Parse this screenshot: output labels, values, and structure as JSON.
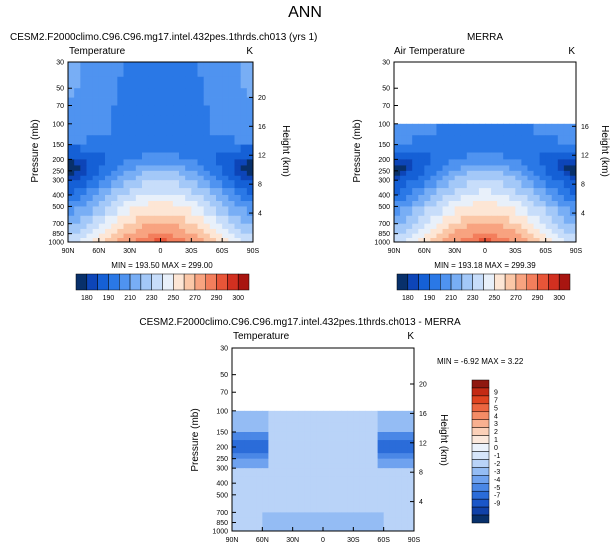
{
  "figure_title": "ANN",
  "colors": {
    "abs_cmap": [
      "#08306b",
      "#0d45b8",
      "#1560d6",
      "#2a78e6",
      "#4f93f0",
      "#78aef5",
      "#a3c8f8",
      "#c7ddfa",
      "#e8f0fa",
      "#fde6d5",
      "#fbc7a7",
      "#f8a380",
      "#f37e5c",
      "#e85538",
      "#d23020",
      "#a81510"
    ],
    "diff_cmap": [
      "#08306b",
      "#1041a8",
      "#1a56c8",
      "#2b6cd9",
      "#4a87e6",
      "#6fa2ef",
      "#94bcf4",
      "#b9d3f8",
      "#d6e5fa",
      "#eaf1fb",
      "#fbe8dc",
      "#fbd0b8",
      "#f8b090",
      "#f48c66",
      "#ec6640",
      "#e04420",
      "#c42a14",
      "#8f1810"
    ]
  },
  "chart_data": [
    {
      "id": "model",
      "type": "heatmap",
      "title": "CESM2.F2000climo.C96.C96.mg17.intel.432pes.1thrds.ch013 (yrs 1)",
      "variable": "Temperature",
      "units": "K",
      "xlabel": "",
      "ylabel": "Pressure (mb)",
      "y2label": "Height (km)",
      "xticks": [
        "90N",
        "60N",
        "30N",
        "0",
        "30S",
        "60S",
        "90S"
      ],
      "xlim": [
        90,
        -90
      ],
      "yticks": [
        "30",
        "50",
        "70",
        "100",
        "150",
        "200",
        "250",
        "300",
        "400",
        "500",
        "700",
        "850",
        "1000"
      ],
      "ytick_values": [
        30,
        50,
        70,
        100,
        150,
        200,
        250,
        300,
        400,
        500,
        700,
        850,
        1000
      ],
      "ylim": [
        30,
        1000
      ],
      "y2ticks": [
        "20",
        "16",
        "12",
        "8",
        "4"
      ],
      "y2tick_values": [
        20,
        16,
        12,
        8,
        4
      ],
      "data_top_pressure": 30,
      "stats": "MIN = 193.50   MAX = 299.00",
      "colorbar_labels": [
        "180",
        "190",
        "210",
        "230",
        "250",
        "270",
        "290",
        "300"
      ],
      "colorbar_n": 16
    },
    {
      "id": "obs",
      "type": "heatmap",
      "title": "MERRA",
      "variable": "Air Temperature",
      "units": "K",
      "xlabel": "",
      "ylabel": "Pressure (mb)",
      "y2label": "Height (km)",
      "xticks": [
        "90N",
        "60N",
        "30N",
        "0",
        "30S",
        "60S",
        "90S"
      ],
      "xlim": [
        90,
        -90
      ],
      "yticks": [
        "30",
        "50",
        "70",
        "100",
        "150",
        "200",
        "250",
        "300",
        "400",
        "500",
        "700",
        "850",
        "1000"
      ],
      "ytick_values": [
        30,
        50,
        70,
        100,
        150,
        200,
        250,
        300,
        400,
        500,
        700,
        850,
        1000
      ],
      "ylim": [
        30,
        1000
      ],
      "y2ticks": [
        "16",
        "12",
        "8",
        "4"
      ],
      "y2tick_values": [
        16,
        12,
        8,
        4
      ],
      "data_top_pressure": 100,
      "stats": "MIN = 193.18   MAX = 299.39",
      "colorbar_labels": [
        "180",
        "190",
        "210",
        "230",
        "250",
        "270",
        "290",
        "300"
      ],
      "colorbar_n": 16
    },
    {
      "id": "diff",
      "type": "heatmap",
      "title": "CESM2.F2000climo.C96.C96.mg17.intel.432pes.1thrds.ch013 - MERRA",
      "variable": "Temperature",
      "units": "K",
      "xlabel": "",
      "ylabel": "Pressure (mb)",
      "y2label": "Height (km)",
      "xticks": [
        "90N",
        "60N",
        "30N",
        "0",
        "30S",
        "60S",
        "90S"
      ],
      "xlim": [
        90,
        -90
      ],
      "yticks": [
        "30",
        "50",
        "70",
        "100",
        "150",
        "200",
        "250",
        "300",
        "400",
        "500",
        "700",
        "850",
        "1000"
      ],
      "ytick_values": [
        30,
        50,
        70,
        100,
        150,
        200,
        250,
        300,
        400,
        500,
        700,
        850,
        1000
      ],
      "ylim": [
        30,
        1000
      ],
      "y2ticks": [
        "20",
        "16",
        "12",
        "8",
        "4"
      ],
      "y2tick_values": [
        20,
        16,
        12,
        8,
        4
      ],
      "data_top_pressure": 100,
      "stats": "MIN =  -6.92   MAX =   3.22",
      "colorbar_labels": [
        "9",
        "7",
        "5",
        "4",
        "3",
        "2",
        "1",
        "0",
        "-1",
        "-2",
        "-3",
        "-4",
        "-5",
        "-7",
        "-9"
      ],
      "colorbar_n": 18
    }
  ]
}
